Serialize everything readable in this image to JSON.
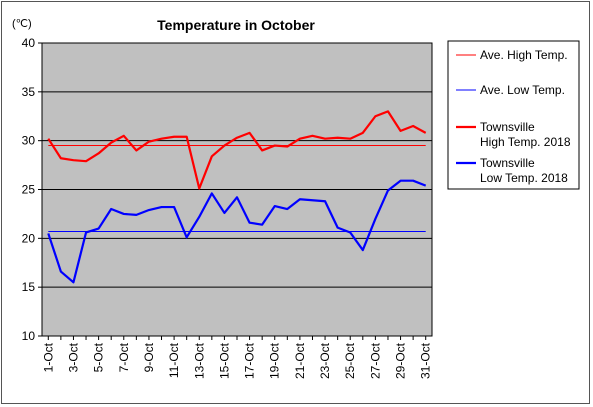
{
  "chart_data": {
    "type": "line",
    "title": "Temperature in October",
    "unit_label": "(℃)",
    "xlabel": "",
    "ylabel": "",
    "ylim": [
      10,
      40
    ],
    "y_ticks": [
      10,
      15,
      20,
      25,
      30,
      35,
      40
    ],
    "x_tick_labels": [
      "1-Oct",
      "3-Oct",
      "5-Oct",
      "7-Oct",
      "9-Oct",
      "11-Oct",
      "13-Oct",
      "15-Oct",
      "17-Oct",
      "19-Oct",
      "21-Oct",
      "23-Oct",
      "25-Oct",
      "27-Oct",
      "29-Oct",
      "31-Oct"
    ],
    "x": [
      1,
      2,
      3,
      4,
      5,
      6,
      7,
      8,
      9,
      10,
      11,
      12,
      13,
      14,
      15,
      16,
      17,
      18,
      19,
      20,
      21,
      22,
      23,
      24,
      25,
      26,
      27,
      28,
      29,
      30,
      31
    ],
    "grid": "horizontal",
    "plot_background": "#c0c0c0",
    "legend_position": "right",
    "series": [
      {
        "name": "Ave. High Temp.",
        "legend_lines": [
          "Ave. High Temp."
        ],
        "color": "#ff0000",
        "width": "thin",
        "values": [
          29.5,
          29.5,
          29.5,
          29.5,
          29.5,
          29.5,
          29.5,
          29.5,
          29.5,
          29.5,
          29.5,
          29.5,
          29.5,
          29.5,
          29.5,
          29.5,
          29.5,
          29.5,
          29.5,
          29.5,
          29.5,
          29.5,
          29.5,
          29.5,
          29.5,
          29.5,
          29.5,
          29.5,
          29.5,
          29.5,
          29.5
        ]
      },
      {
        "name": "Ave. Low Temp.",
        "legend_lines": [
          "Ave. Low Temp."
        ],
        "color": "#0000ff",
        "width": "thin",
        "values": [
          20.7,
          20.7,
          20.7,
          20.7,
          20.7,
          20.7,
          20.7,
          20.7,
          20.7,
          20.7,
          20.7,
          20.7,
          20.7,
          20.7,
          20.7,
          20.7,
          20.7,
          20.7,
          20.7,
          20.7,
          20.7,
          20.7,
          20.7,
          20.7,
          20.7,
          20.7,
          20.7,
          20.7,
          20.7,
          20.7,
          20.7
        ]
      },
      {
        "name": "Townsville High Temp. 2018",
        "legend_lines": [
          "Townsville",
          "High Temp. 2018"
        ],
        "color": "#ff0000",
        "width": "thick",
        "values": [
          30.2,
          28.2,
          28.0,
          27.9,
          28.7,
          29.8,
          30.5,
          29.0,
          29.9,
          30.2,
          30.4,
          30.4,
          25.1,
          28.4,
          29.5,
          30.3,
          30.8,
          29.0,
          29.5,
          29.4,
          30.2,
          30.5,
          30.2,
          30.3,
          30.2,
          30.8,
          32.5,
          33.0,
          31.0,
          31.5,
          30.8
        ]
      },
      {
        "name": "Townsville Low Temp. 2018",
        "legend_lines": [
          "Townsville",
          "Low Temp. 2018"
        ],
        "color": "#0000ff",
        "width": "thick",
        "values": [
          20.5,
          16.6,
          15.5,
          20.6,
          21.0,
          23.0,
          22.5,
          22.4,
          22.9,
          23.2,
          23.2,
          20.1,
          22.2,
          24.6,
          22.6,
          24.2,
          21.6,
          21.4,
          23.3,
          23.0,
          24.0,
          23.9,
          23.8,
          21.1,
          20.6,
          18.8,
          22.0,
          24.9,
          25.9,
          25.9,
          25.4
        ]
      }
    ]
  }
}
